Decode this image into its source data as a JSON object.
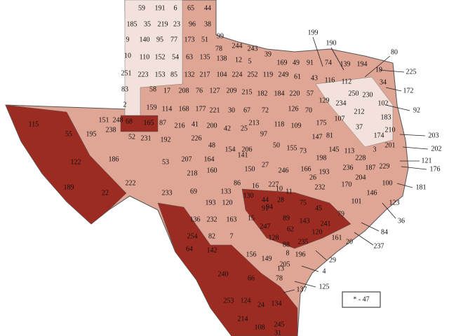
{
  "county_labels": [
    59,
    191,
    6,
    65,
    44,
    185,
    35,
    219,
    23,
    96,
    38,
    9,
    140,
    95,
    77,
    173,
    51,
    99,
    10,
    110,
    152,
    54,
    63,
    135,
    78,
    244,
    243,
    39,
    138,
    12,
    5,
    169,
    49,
    91,
    74,
    139,
    194,
    19,
    251,
    223,
    153,
    85,
    132,
    217,
    104,
    224,
    252,
    119,
    249,
    61,
    43,
    116,
    112,
    34,
    83,
    58,
    17,
    208,
    76,
    127,
    209,
    215,
    182,
    184,
    220,
    57,
    129,
    250,
    230,
    2,
    159,
    114,
    168,
    177,
    221,
    30,
    67,
    72,
    126,
    70,
    234,
    212,
    102,
    183,
    115,
    151,
    248,
    68,
    165,
    87,
    216,
    41,
    200,
    42,
    25,
    213,
    118,
    109,
    175,
    107,
    37,
    210,
    55,
    195,
    238,
    52,
    231,
    192,
    226,
    97,
    147,
    81,
    174,
    48,
    154,
    206,
    50,
    155,
    145,
    113,
    3,
    201,
    122,
    186,
    53,
    207,
    164,
    141,
    73,
    198,
    228,
    160,
    150,
    27,
    246,
    166,
    236,
    187,
    229,
    189,
    22,
    222,
    218,
    86,
    16,
    227,
    26,
    193,
    204,
    233,
    69,
    133,
    130,
    44,
    28,
    91,
    75,
    232,
    170,
    146,
    100,
    193,
    120,
    10,
    11,
    101,
    123,
    136,
    232,
    163,
    15,
    94,
    89,
    143,
    45,
    79,
    247,
    62,
    241,
    120,
    161,
    254,
    82,
    7,
    128,
    88,
    235,
    20,
    64,
    142,
    156,
    149,
    8,
    196,
    13,
    205,
    240,
    66,
    78,
    253,
    124,
    24,
    134,
    214,
    108,
    245,
    31,
    199,
    190,
    80,
    225,
    172,
    92,
    203,
    202,
    121,
    176,
    181,
    36,
    84,
    237,
    29,
    4,
    125,
    137
  ],
  "legend": "* - 47"
}
